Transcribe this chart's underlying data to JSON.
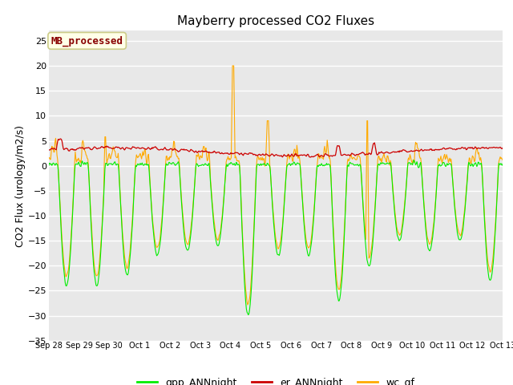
{
  "title": "Mayberry processed CO2 Fluxes",
  "ylabel": "CO2 Flux (urology/m2/s)",
  "ylim": [
    -35,
    27
  ],
  "yticks": [
    -35,
    -30,
    -25,
    -20,
    -15,
    -10,
    -5,
    0,
    5,
    10,
    15,
    20,
    25
  ],
  "x_labels": [
    "Sep 28",
    "Sep 29",
    "Sep 30",
    "Oct 1",
    "Oct 2",
    "Oct 3",
    "Oct 4",
    "Oct 5",
    "Oct 6",
    "Oct 7",
    "Oct 8",
    "Oct 9",
    "Oct 10",
    "Oct 11",
    "Oct 12",
    "Oct 13"
  ],
  "colors": {
    "gpp": "#00ee00",
    "er": "#cc0000",
    "wc": "#ffaa00"
  },
  "legend_labels": [
    "gpp_ANNnight",
    "er_ANNnight",
    "wc_gf"
  ],
  "annotation_text": "MB_processed",
  "annotation_color": "#880000",
  "annotation_bg": "#ffffe8",
  "annotation_border": "#cccc88",
  "fig_bg": "#ffffff",
  "plot_bg": "#e8e8e8",
  "n_points": 720,
  "seed": 12345
}
